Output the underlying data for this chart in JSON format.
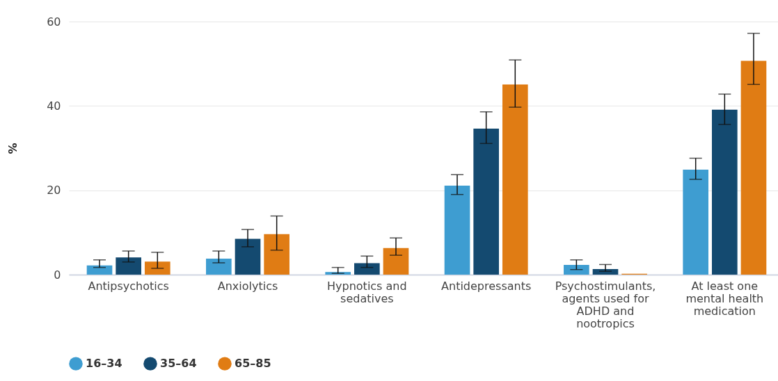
{
  "chart_data": {
    "type": "bar",
    "ylabel": "%",
    "categories": [
      "Antipsychotics",
      "Anxiolytics",
      "Hypnotics and sedatives",
      "Antidepressants",
      "Psychostimulants, agents used for ADHD and nootropics",
      "At least one mental health medication"
    ],
    "series": [
      {
        "name": "16–34",
        "color": "#3e9dd1",
        "values": [
          2.2,
          3.8,
          0.6,
          21.1,
          2.3,
          24.9
        ],
        "errors": [
          [
            1.7,
            3.5
          ],
          [
            2.8,
            5.6
          ],
          [
            0.3,
            1.7
          ],
          [
            19.0,
            23.7
          ],
          [
            1.2,
            3.5
          ],
          [
            22.6,
            27.6
          ]
        ]
      },
      {
        "name": "35–64",
        "color": "#144a70",
        "values": [
          4.1,
          8.5,
          2.7,
          34.6,
          1.3,
          39.1
        ],
        "errors": [
          [
            3.0,
            5.6
          ],
          [
            6.6,
            10.7
          ],
          [
            1.7,
            4.4
          ],
          [
            31.1,
            38.6
          ],
          [
            0.8,
            2.4
          ],
          [
            35.6,
            42.8
          ]
        ]
      },
      {
        "name": "65–85",
        "color": "#e07c14",
        "values": [
          3.1,
          9.6,
          6.3,
          45.1,
          0.2,
          50.7
        ],
        "errors": [
          [
            1.5,
            5.3
          ],
          [
            5.8,
            13.9
          ],
          [
            4.6,
            8.7
          ],
          [
            39.7,
            50.9
          ],
          null,
          [
            45.1,
            57.2
          ]
        ]
      }
    ],
    "ylim": [
      0,
      60
    ],
    "yticks": [
      0,
      20,
      40,
      60
    ],
    "grid": "y",
    "legend": "bottom"
  }
}
